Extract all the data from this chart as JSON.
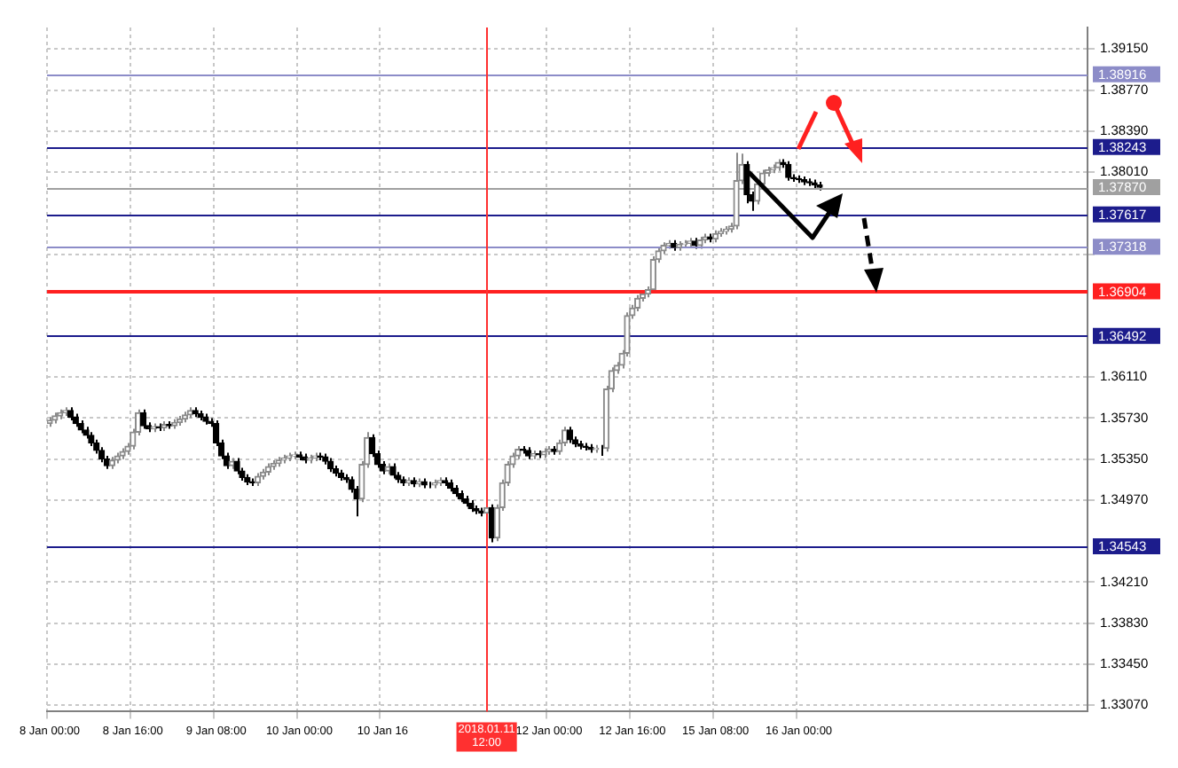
{
  "chart_data": {
    "type": "candlestick",
    "grid": true,
    "colors": [
      "#8a8a8a",
      "#8a8a8a",
      "#8a8a8a",
      "#8a8a8a",
      "#000000",
      "#000000",
      "#000000",
      "#000000",
      "#000000",
      "#000000",
      "#000000",
      "#000000",
      "#8a8a8a",
      "#8a8a8a",
      "#8a8a8a",
      "#8a8a8a",
      "#8a8a8a",
      "#8a8a8a",
      "#000000",
      "#000000",
      "#8a8a8a",
      "#000000",
      "#8a8a8a",
      "#000000",
      "#8a8a8a",
      "#8a8a8a",
      "#8a8a8a",
      "#8a8a8a",
      "#000000",
      "#000000",
      "#000000",
      "#000000",
      "#000000",
      "#000000",
      "#000000",
      "#8a8a8a",
      "#000000",
      "#000000",
      "#000000",
      "#000000",
      "#8a8a8a",
      "#8a8a8a",
      "#8a8a8a",
      "#8a8a8a",
      "#8a8a8a",
      "#8a8a8a",
      "#8a8a8a",
      "#8a8a8a",
      "#000000",
      "#000000",
      "#8a8a8a",
      "#8a8a8a",
      "#000000",
      "#000000",
      "#000000",
      "#000000",
      "#000000",
      "#000000",
      "#000000",
      "#000000",
      "#8a8a8a",
      "#8a8a8a",
      "#000000",
      "#000000",
      "#000000",
      "#8a8a8a",
      "#000000",
      "#000000",
      "#000000",
      "#8a8a8a",
      "#000000",
      "#8a8a8a",
      "#000000",
      "#000000",
      "#8a8a8a",
      "#8a8a8a",
      "#000000",
      "#000000",
      "#000000",
      "#000000",
      "#000000",
      "#000000",
      "#000000",
      "#000000",
      "#8a8a8a",
      "#000000",
      "#8a8a8a",
      "#8a8a8a",
      "#8a8a8a",
      "#8a8a8a",
      "#8a8a8a",
      "#000000",
      "#000000",
      "#8a8a8a",
      "#000000",
      "#8a8a8a",
      "#8a8a8a",
      "#000000",
      "#8a8a8a",
      "#8a8a8a",
      "#000000",
      "#000000",
      "#000000",
      "#000000",
      "#000000",
      "#8a8a8a",
      "#000000",
      "#8a8a8a",
      "#8a8a8a",
      "#8a8a8a",
      "#8a8a8a",
      "#8a8a8a",
      "#8a8a8a",
      "#8a8a8a",
      "#8a8a8a",
      "#8a8a8a",
      "#8a8a8a",
      "#8a8a8a",
      "#8a8a8a",
      "#8a8a8a",
      "#000000",
      "#8a8a8a",
      "#8a8a8a",
      "#8a8a8a",
      "#000000",
      "#8a8a8a",
      "#8a8a8a",
      "#000000",
      "#8a8a8a",
      "#8a8a8a",
      "#8a8a8a",
      "#8a8a8a",
      "#8a8a8a",
      "#8a8a8a",
      "#000000",
      "#000000",
      "#8a8a8a",
      "#8a8a8a",
      "#8a8a8a",
      "#8a8a8a",
      "#8a8a8a",
      "#000000",
      "#000000",
      "#000000",
      "#000000",
      "#000000",
      "#000000",
      "#000000",
      "#000000",
      null,
      null,
      null,
      null,
      null,
      null,
      null,
      null,
      null,
      null,
      null,
      null,
      null,
      null,
      null,
      null,
      null,
      null,
      null,
      null,
      null,
      null,
      null,
      null,
      null,
      null,
      null,
      null,
      null,
      null,
      null,
      null,
      null,
      null,
      null,
      null,
      null,
      null,
      null,
      null,
      null,
      null,
      null,
      null,
      null,
      null,
      null,
      null,
      null,
      null,
      null
    ],
    "categories": [
      "8 Jan 00:00",
      null,
      null,
      null,
      null,
      null,
      null,
      null,
      null,
      null,
      null,
      null,
      null,
      null,
      null,
      null,
      "8 Jan 16:00",
      null,
      null,
      null,
      null,
      null,
      null,
      null,
      null,
      null,
      null,
      null,
      null,
      null,
      null,
      null,
      "9 Jan 08:00",
      null,
      null,
      null,
      null,
      null,
      null,
      null,
      null,
      null,
      null,
      null,
      null,
      null,
      null,
      null,
      "10 Jan 00:00",
      null,
      null,
      null,
      null,
      null,
      null,
      null,
      null,
      null,
      null,
      null,
      null,
      null,
      null,
      null,
      "10 Jan 16",
      null,
      null,
      null,
      null,
      null,
      null,
      null,
      null,
      null,
      null,
      null,
      null,
      null,
      null,
      null,
      null,
      null,
      null,
      null,
      "2018.01.11 12:00",
      null,
      null,
      null,
      null,
      null,
      null,
      null,
      null,
      null,
      null,
      null,
      "12 Jan 00:00",
      null,
      null,
      null,
      null,
      null,
      null,
      null,
      null,
      null,
      null,
      null,
      null,
      null,
      null,
      null,
      "12 Jan 16:00",
      null,
      null,
      null,
      null,
      null,
      null,
      null,
      null,
      null,
      null,
      null,
      null,
      null,
      null,
      null,
      "15 Jan 08:00",
      null,
      null,
      null,
      null,
      null,
      null,
      null,
      null,
      null,
      null,
      null,
      null,
      null,
      null,
      null,
      "16 Jan 00:00",
      null,
      null,
      null,
      null,
      null,
      null,
      null,
      null,
      null,
      null,
      null,
      null,
      null,
      null,
      null,
      null,
      null,
      null,
      null,
      null,
      null,
      null,
      null,
      null,
      null,
      null,
      null,
      null,
      null,
      null,
      null,
      null,
      null,
      null,
      null,
      null,
      null,
      null,
      null,
      null,
      null,
      null,
      null,
      null,
      null,
      null,
      null,
      null,
      null,
      null,
      null,
      null,
      null,
      null,
      null
    ],
    "ohlc": [
      [
        1.3568,
        1.3574,
        1.3565,
        1.3571
      ],
      [
        1.3571,
        1.3578,
        1.3568,
        1.3575
      ],
      [
        1.3575,
        1.3581,
        1.3572,
        1.3578
      ],
      [
        1.3578,
        1.3583,
        1.3575,
        1.358
      ],
      [
        1.358,
        1.3583,
        1.3571,
        1.3574
      ],
      [
        1.3574,
        1.3577,
        1.3565,
        1.3568
      ],
      [
        1.3568,
        1.3571,
        1.3559,
        1.3562
      ],
      [
        1.3562,
        1.3565,
        1.3554,
        1.3557
      ],
      [
        1.3557,
        1.356,
        1.3547,
        1.355
      ],
      [
        1.355,
        1.3553,
        1.354,
        1.3543
      ],
      [
        1.3543,
        1.3546,
        1.3532,
        1.3535
      ],
      [
        1.3535,
        1.3538,
        1.3526,
        1.3529
      ],
      [
        1.3529,
        1.3537,
        1.3526,
        1.3534
      ],
      [
        1.3534,
        1.3541,
        1.3531,
        1.3538
      ],
      [
        1.3538,
        1.3545,
        1.3535,
        1.3542
      ],
      [
        1.3542,
        1.355,
        1.3539,
        1.3547
      ],
      [
        1.3547,
        1.3563,
        1.3544,
        1.356
      ],
      [
        1.356,
        1.3581,
        1.3557,
        1.3578
      ],
      [
        1.3578,
        1.3581,
        1.3563,
        1.3566
      ],
      [
        1.3566,
        1.3569,
        1.356,
        1.3563
      ],
      [
        1.3563,
        1.3568,
        1.356,
        1.3565
      ],
      [
        1.3565,
        1.3568,
        1.3561,
        1.3564
      ],
      [
        1.3564,
        1.357,
        1.3561,
        1.3567
      ],
      [
        1.3567,
        1.357,
        1.3563,
        1.3566
      ],
      [
        1.3566,
        1.3572,
        1.3563,
        1.3569
      ],
      [
        1.3569,
        1.3575,
        1.3566,
        1.3572
      ],
      [
        1.3572,
        1.3579,
        1.3569,
        1.3576
      ],
      [
        1.3576,
        1.3583,
        1.3573,
        1.358
      ],
      [
        1.358,
        1.3583,
        1.3574,
        1.3577
      ],
      [
        1.3577,
        1.358,
        1.3571,
        1.3574
      ],
      [
        1.3574,
        1.3577,
        1.3567,
        1.357
      ],
      [
        1.357,
        1.3573,
        1.3565,
        1.3568
      ],
      [
        1.3568,
        1.3571,
        1.3547,
        1.355
      ],
      [
        1.355,
        1.3553,
        1.3535,
        1.3538
      ],
      [
        1.3538,
        1.3541,
        1.3526,
        1.3529
      ],
      [
        1.3529,
        1.3536,
        1.3526,
        1.3533
      ],
      [
        1.3533,
        1.3536,
        1.3521,
        1.3524
      ],
      [
        1.3524,
        1.3527,
        1.3515,
        1.3518
      ],
      [
        1.3518,
        1.3521,
        1.3511,
        1.3514
      ],
      [
        1.3514,
        1.3517,
        1.351,
        1.3513
      ],
      [
        1.3513,
        1.3522,
        1.351,
        1.3519
      ],
      [
        1.3519,
        1.3526,
        1.3516,
        1.3523
      ],
      [
        1.3523,
        1.3531,
        1.352,
        1.3528
      ],
      [
        1.3528,
        1.3534,
        1.3525,
        1.3531
      ],
      [
        1.3531,
        1.3537,
        1.3528,
        1.3534
      ],
      [
        1.3534,
        1.3539,
        1.3531,
        1.3536
      ],
      [
        1.3536,
        1.3541,
        1.3533,
        1.3538
      ],
      [
        1.3538,
        1.3542,
        1.3535,
        1.3539
      ],
      [
        1.3539,
        1.3542,
        1.3534,
        1.3537
      ],
      [
        1.3537,
        1.354,
        1.3531,
        1.3534
      ],
      [
        1.3534,
        1.3539,
        1.3531,
        1.3536
      ],
      [
        1.3536,
        1.3541,
        1.3533,
        1.3538
      ],
      [
        1.3538,
        1.3541,
        1.3534,
        1.3537
      ],
      [
        1.3537,
        1.354,
        1.353,
        1.3533
      ],
      [
        1.3533,
        1.3536,
        1.3523,
        1.3526
      ],
      [
        1.3526,
        1.3529,
        1.3519,
        1.3522
      ],
      [
        1.3522,
        1.3525,
        1.3515,
        1.3518
      ],
      [
        1.3518,
        1.3521,
        1.3513,
        1.3516
      ],
      [
        1.3516,
        1.3519,
        1.3504,
        1.3507
      ],
      [
        1.3507,
        1.351,
        1.3482,
        1.3498
      ],
      [
        1.3498,
        1.3533,
        1.3495,
        1.353
      ],
      [
        1.353,
        1.356,
        1.3527,
        1.3555
      ],
      [
        1.3555,
        1.3558,
        1.3537,
        1.354
      ],
      [
        1.354,
        1.3543,
        1.3527,
        1.353
      ],
      [
        1.353,
        1.3533,
        1.3521,
        1.3524
      ],
      [
        1.3524,
        1.3531,
        1.3521,
        1.3528
      ],
      [
        1.3528,
        1.3531,
        1.3517,
        1.352
      ],
      [
        1.352,
        1.3523,
        1.3513,
        1.3516
      ],
      [
        1.3516,
        1.3519,
        1.351,
        1.3513
      ],
      [
        1.3513,
        1.3518,
        1.351,
        1.3515
      ],
      [
        1.3515,
        1.3518,
        1.3509,
        1.3512
      ],
      [
        1.3512,
        1.3517,
        1.3509,
        1.3514
      ],
      [
        1.3514,
        1.3517,
        1.3508,
        1.3511
      ],
      [
        1.3511,
        1.3514,
        1.3508,
        1.3511
      ],
      [
        1.3511,
        1.3516,
        1.3508,
        1.3513
      ],
      [
        1.3513,
        1.3518,
        1.351,
        1.3515
      ],
      [
        1.3515,
        1.3518,
        1.351,
        1.3513
      ],
      [
        1.3513,
        1.3516,
        1.3505,
        1.3508
      ],
      [
        1.3508,
        1.3511,
        1.35,
        1.3503
      ],
      [
        1.3503,
        1.3506,
        1.3495,
        1.3498
      ],
      [
        1.3498,
        1.3501,
        1.3491,
        1.3494
      ],
      [
        1.3494,
        1.3497,
        1.3486,
        1.3489
      ],
      [
        1.3489,
        1.3492,
        1.3484,
        1.3487
      ],
      [
        1.3487,
        1.349,
        1.3482,
        1.3485
      ],
      [
        1.3485,
        1.3493,
        1.3482,
        1.349
      ],
      [
        1.349,
        1.3493,
        1.3458,
        1.3462
      ],
      [
        1.3462,
        1.3493,
        1.3459,
        1.349
      ],
      [
        1.349,
        1.3516,
        1.3487,
        1.3513
      ],
      [
        1.3513,
        1.3533,
        1.351,
        1.353
      ],
      [
        1.353,
        1.3541,
        1.3527,
        1.3538
      ],
      [
        1.3538,
        1.3547,
        1.3535,
        1.3544
      ],
      [
        1.3544,
        1.3547,
        1.354,
        1.3543
      ],
      [
        1.3543,
        1.3546,
        1.3535,
        1.3538
      ],
      [
        1.3538,
        1.3543,
        1.3535,
        1.354
      ],
      [
        1.354,
        1.3543,
        1.3536,
        1.3539
      ],
      [
        1.3539,
        1.3545,
        1.3536,
        1.3542
      ],
      [
        1.3542,
        1.3547,
        1.3539,
        1.3544
      ],
      [
        1.3544,
        1.3547,
        1.3539,
        1.3542
      ],
      [
        1.3542,
        1.3553,
        1.3539,
        1.355
      ],
      [
        1.355,
        1.3565,
        1.3547,
        1.3562
      ],
      [
        1.3562,
        1.3565,
        1.355,
        1.3553
      ],
      [
        1.3553,
        1.3556,
        1.3546,
        1.3549
      ],
      [
        1.3549,
        1.3552,
        1.3544,
        1.3547
      ],
      [
        1.3547,
        1.355,
        1.3543,
        1.3546
      ],
      [
        1.3546,
        1.3549,
        1.3541,
        1.3544
      ],
      [
        1.3544,
        1.3548,
        1.3541,
        1.3545
      ],
      [
        1.3545,
        1.3548,
        1.3538,
        1.3545
      ],
      [
        1.3545,
        1.3603,
        1.3542,
        1.36
      ],
      [
        1.36,
        1.362,
        1.3597,
        1.3617
      ],
      [
        1.3617,
        1.3625,
        1.3614,
        1.3622
      ],
      [
        1.3622,
        1.3636,
        1.3619,
        1.3633
      ],
      [
        1.3633,
        1.3671,
        1.363,
        1.3668
      ],
      [
        1.3668,
        1.3678,
        1.3665,
        1.3675
      ],
      [
        1.3675,
        1.3687,
        1.3672,
        1.3684
      ],
      [
        1.3684,
        1.3691,
        1.3681,
        1.3688
      ],
      [
        1.3688,
        1.3695,
        1.3685,
        1.3692
      ],
      [
        1.3692,
        1.3723,
        1.3689,
        1.372
      ],
      [
        1.372,
        1.3731,
        1.3717,
        1.3728
      ],
      [
        1.3728,
        1.3736,
        1.3725,
        1.3733
      ],
      [
        1.3733,
        1.3738,
        1.373,
        1.3735
      ],
      [
        1.3735,
        1.3738,
        1.3728,
        1.3731
      ],
      [
        1.3731,
        1.3737,
        1.3728,
        1.3734
      ],
      [
        1.3734,
        1.3738,
        1.3731,
        1.3735
      ],
      [
        1.3735,
        1.374,
        1.3732,
        1.3737
      ],
      [
        1.3737,
        1.374,
        1.373,
        1.3733
      ],
      [
        1.3733,
        1.3741,
        1.373,
        1.3738
      ],
      [
        1.3738,
        1.3744,
        1.3735,
        1.3741
      ],
      [
        1.3741,
        1.3744,
        1.3736,
        1.3739
      ],
      [
        1.3739,
        1.3747,
        1.3736,
        1.3744
      ],
      [
        1.3744,
        1.3749,
        1.3741,
        1.3746
      ],
      [
        1.3746,
        1.3751,
        1.3743,
        1.3748
      ],
      [
        1.3748,
        1.3754,
        1.3745,
        1.3751
      ],
      [
        1.3751,
        1.3819,
        1.3748,
        1.3793
      ],
      [
        1.3793,
        1.3818,
        1.379,
        1.3808
      ],
      [
        1.3808,
        1.3811,
        1.3772,
        1.378
      ],
      [
        1.378,
        1.3783,
        1.3765,
        1.3774
      ],
      [
        1.3774,
        1.3793,
        1.3771,
        1.379
      ],
      [
        1.379,
        1.3803,
        1.3787,
        1.38
      ],
      [
        1.38,
        1.3806,
        1.3797,
        1.3803
      ],
      [
        1.3803,
        1.3808,
        1.38,
        1.3805
      ],
      [
        1.3805,
        1.3813,
        1.3802,
        1.381
      ],
      [
        1.381,
        1.3813,
        1.3805,
        1.3808
      ],
      [
        1.3808,
        1.3811,
        1.3793,
        1.3796
      ],
      [
        1.3796,
        1.3799,
        1.3792,
        1.3795
      ],
      [
        1.3795,
        1.3798,
        1.3791,
        1.3794
      ],
      [
        1.3794,
        1.3797,
        1.3789,
        1.3792
      ],
      [
        1.3792,
        1.3795,
        1.3788,
        1.3791
      ],
      [
        1.3791,
        1.3794,
        1.3786,
        1.3789
      ],
      [
        1.3789,
        1.3792,
        1.3784,
        1.3787
      ],
      null,
      null,
      null,
      null,
      null,
      null,
      null,
      null,
      null,
      null,
      null,
      null,
      null,
      null,
      null,
      null,
      null,
      null,
      null,
      null,
      null,
      null,
      null,
      null,
      null,
      null,
      null,
      null,
      null,
      null,
      null,
      null,
      null,
      null,
      null,
      null,
      null,
      null,
      null,
      null,
      null,
      null,
      null,
      null,
      null,
      null,
      null,
      null,
      null,
      null,
      null
    ],
    "ylim": [
      1.3301,
      1.3935
    ],
    "yticks": [
      {
        "value": 1.3307,
        "label": "1.33070"
      },
      {
        "value": 1.3345,
        "label": "1.33450"
      },
      {
        "value": 1.3383,
        "label": "1.33830"
      },
      {
        "value": 1.3421,
        "label": "1.34210"
      },
      {
        "value": 1.3497,
        "label": "1.34970"
      },
      {
        "value": 1.3535,
        "label": "1.35350"
      },
      {
        "value": 1.3573,
        "label": "1.35730"
      },
      {
        "value": 1.3611,
        "label": "1.36110"
      },
      {
        "value": 1.3725,
        "label": null
      },
      {
        "value": 1.3801,
        "label": "1.38010"
      },
      {
        "value": 1.3839,
        "label": "1.38390"
      },
      {
        "value": 1.3877,
        "label": "1.38770"
      },
      {
        "value": 1.3915,
        "label": "1.39150"
      }
    ],
    "ref_lines": [
      {
        "axis": "y",
        "value": 1.38916,
        "label": "1.38916",
        "color": "#8c8cc8"
      },
      {
        "axis": "y",
        "value": 1.38243,
        "label": "1.38243",
        "color": "#1c1c8c"
      },
      {
        "axis": "y",
        "value": 1.3787,
        "label": "1.37870",
        "color": "#a0a0a0"
      },
      {
        "axis": "y",
        "value": 1.37617,
        "label": "1.37617",
        "color": "#1c1c8c"
      },
      {
        "axis": "y",
        "value": 1.37318,
        "label": "1.37318",
        "color": "#8c8cc8"
      },
      {
        "axis": "y",
        "value": 1.36904,
        "label": "1.36904",
        "color": "#ff2020"
      },
      {
        "axis": "y",
        "value": 1.36492,
        "label": "1.36492",
        "color": "#1c1c8c"
      },
      {
        "axis": "y",
        "value": 1.34543,
        "label": "1.34543",
        "color": "#1c1c8c"
      },
      {
        "axis": "x",
        "value": "2018.01.11 12:00",
        "color": "#ff3030"
      }
    ]
  }
}
